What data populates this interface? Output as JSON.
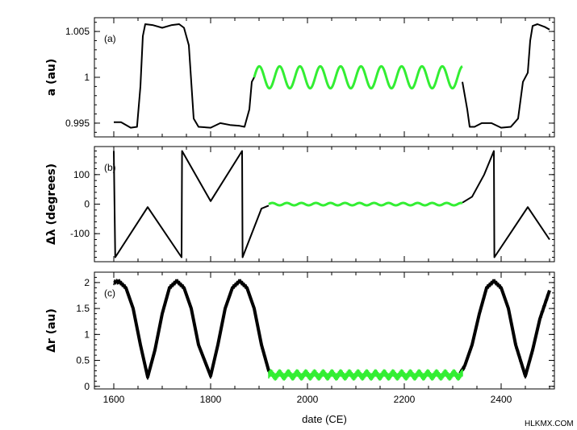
{
  "chart_data": [
    {
      "type": "line",
      "panel_label": "(a)",
      "ylabel": "a (au)",
      "xlim": [
        1560,
        2510
      ],
      "ylim": [
        0.9935,
        1.0065
      ],
      "yticks": [
        0.995,
        1,
        1.005
      ],
      "ytick_labels": [
        "0.995",
        "1",
        "1.005"
      ],
      "series": [
        {
          "color": "#000000",
          "segments": [
            [
              [
                1600,
                0.9951
              ],
              [
                1615,
                0.9951
              ],
              [
                1635,
                0.9945
              ],
              [
                1648,
                0.9946
              ],
              [
                1655,
                0.999
              ],
              [
                1660,
                1.0045
              ],
              [
                1665,
                1.0058
              ],
              [
                1680,
                1.0057
              ],
              [
                1700,
                1.0054
              ],
              [
                1720,
                1.0057
              ],
              [
                1735,
                1.0058
              ],
              [
                1745,
                1.0054
              ],
              [
                1755,
                1.0035
              ],
              [
                1765,
                0.9955
              ],
              [
                1775,
                0.9946
              ],
              [
                1800,
                0.9945
              ],
              [
                1820,
                0.995
              ],
              [
                1840,
                0.9948
              ],
              [
                1860,
                0.9947
              ],
              [
                1870,
                0.9946
              ],
              [
                1880,
                0.9965
              ],
              [
                1885,
                0.9995
              ],
              [
                1890,
                1.0
              ]
            ],
            [
              [
                2320,
                0.9995
              ],
              [
                2330,
                0.9965
              ],
              [
                2335,
                0.9946
              ],
              [
                2345,
                0.9946
              ],
              [
                2360,
                0.995
              ],
              [
                2380,
                0.995
              ],
              [
                2400,
                0.9945
              ],
              [
                2420,
                0.9946
              ],
              [
                2435,
                0.9955
              ],
              [
                2445,
                0.9995
              ],
              [
                2455,
                1.0005
              ],
              [
                2460,
                1.004
              ],
              [
                2465,
                1.0056
              ],
              [
                2475,
                1.0058
              ],
              [
                2490,
                1.0055
              ],
              [
                2500,
                1.0052
              ]
            ]
          ]
        },
        {
          "color": "#33ee33",
          "oscillation": {
            "x_start": 1890,
            "x_end": 2320,
            "center": 1.0,
            "amplitude": 0.0012,
            "period": 42
          }
        }
      ]
    },
    {
      "type": "line",
      "panel_label": "(b)",
      "ylabel": "Δλ (degrees)",
      "xlim": [
        1560,
        2510
      ],
      "ylim": [
        -195,
        195
      ],
      "yticks": [
        -100,
        0,
        100
      ],
      "ytick_labels": [
        "-100",
        "0",
        "100"
      ],
      "series": [
        {
          "color": "#000000",
          "segments": [
            [
              [
                1600,
                180
              ],
              [
                1603,
                -180
              ],
              [
                1670,
                -10
              ],
              [
                1740,
                -180
              ],
              [
                1741,
                180
              ],
              [
                1800,
                10
              ],
              [
                1865,
                180
              ],
              [
                1866,
                -180
              ],
              [
                1905,
                -15
              ],
              [
                1920,
                -5
              ]
            ],
            [
              [
                2320,
                5
              ],
              [
                2340,
                25
              ],
              [
                2365,
                100
              ],
              [
                2385,
                180
              ],
              [
                2386,
                -180
              ],
              [
                2455,
                -10
              ],
              [
                2500,
                -120
              ]
            ]
          ]
        },
        {
          "color": "#33ee33",
          "oscillation": {
            "x_start": 1920,
            "x_end": 2320,
            "center": 0,
            "amplitude": 4,
            "period": 30
          }
        }
      ]
    },
    {
      "type": "line",
      "panel_label": "(c)",
      "ylabel": "Δr (au)",
      "xlabel": "date (CE)",
      "xlim": [
        1560,
        2510
      ],
      "ylim": [
        -0.05,
        2.2
      ],
      "xticks": [
        1600,
        1800,
        2000,
        2200,
        2400
      ],
      "xtick_labels": [
        "1600",
        "1800",
        "2000",
        "2200",
        "2400"
      ],
      "yticks": [
        0,
        0.5,
        1,
        1.5,
        2
      ],
      "ytick_labels": [
        "0",
        "0.5",
        "1",
        "1.5",
        "2"
      ],
      "series": [
        {
          "color": "#000000",
          "band": true,
          "segments": [
            [
              [
                1600,
                2.0
              ],
              [
                1610,
                2.03
              ],
              [
                1625,
                1.9
              ],
              [
                1640,
                1.5
              ],
              [
                1655,
                0.8
              ],
              [
                1670,
                0.18
              ],
              [
                1685,
                0.7
              ],
              [
                1700,
                1.4
              ],
              [
                1715,
                1.9
              ],
              [
                1730,
                2.03
              ],
              [
                1745,
                1.9
              ],
              [
                1760,
                1.5
              ],
              [
                1775,
                0.8
              ],
              [
                1800,
                0.2
              ],
              [
                1815,
                0.8
              ],
              [
                1830,
                1.5
              ],
              [
                1845,
                1.9
              ],
              [
                1860,
                2.03
              ],
              [
                1875,
                1.9
              ],
              [
                1890,
                1.5
              ],
              [
                1905,
                0.8
              ],
              [
                1920,
                0.3
              ],
              [
                1925,
                0.25
              ]
            ],
            [
              [
                2315,
                0.25
              ],
              [
                2325,
                0.4
              ],
              [
                2340,
                0.8
              ],
              [
                2355,
                1.4
              ],
              [
                2370,
                1.9
              ],
              [
                2385,
                2.03
              ],
              [
                2400,
                1.9
              ],
              [
                2415,
                1.5
              ],
              [
                2430,
                0.8
              ],
              [
                2450,
                0.2
              ],
              [
                2465,
                0.7
              ],
              [
                2480,
                1.3
              ],
              [
                2500,
                1.85
              ]
            ]
          ]
        },
        {
          "color": "#33ee33",
          "band": true,
          "oscillation": {
            "x_start": 1920,
            "x_end": 2320,
            "center": 0.22,
            "amplitude": 0.04,
            "period": 18
          }
        }
      ]
    }
  ],
  "watermark": "HLKMX.COM"
}
